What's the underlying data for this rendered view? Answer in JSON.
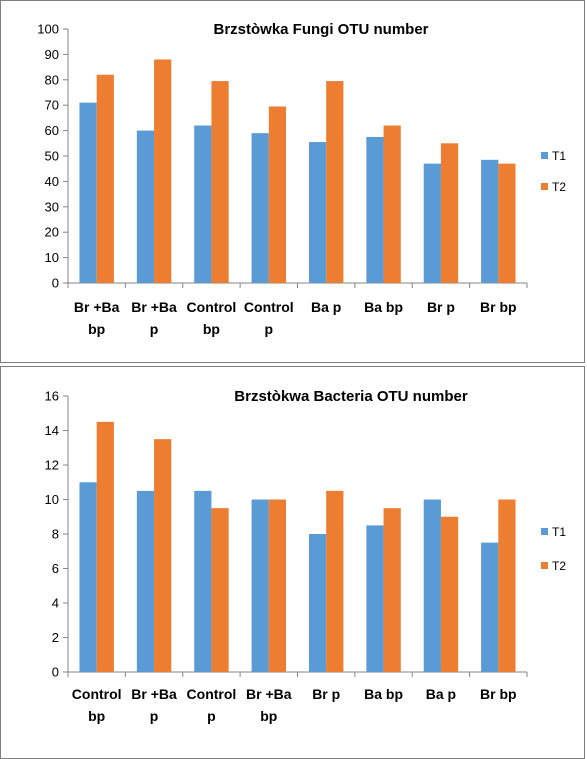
{
  "colors": {
    "T1": "#5b9bd5",
    "T2": "#ed7d31",
    "axis": "#868686"
  },
  "chart_data": [
    {
      "type": "bar",
      "title": "Brzstòwka Fungi OTU number",
      "categories": [
        [
          "Br +Ba",
          "bp"
        ],
        [
          "Br +Ba",
          "p"
        ],
        [
          "Control",
          "bp"
        ],
        [
          "Control",
          "p"
        ],
        [
          "Ba p"
        ],
        [
          "Ba bp"
        ],
        [
          "Br p"
        ],
        [
          "Br bp"
        ]
      ],
      "series": [
        {
          "name": "T1",
          "values": [
            71,
            60,
            62,
            59,
            55.5,
            57.5,
            47,
            48.5
          ]
        },
        {
          "name": "T2",
          "values": [
            82,
            88,
            79.5,
            69.5,
            79.5,
            62,
            55,
            47
          ]
        }
      ],
      "ylim": [
        0,
        100
      ],
      "yticks": [
        0,
        10,
        20,
        30,
        40,
        50,
        60,
        70,
        80,
        90,
        100
      ],
      "xlabel": "",
      "ylabel": "",
      "grid": false,
      "legend": "right"
    },
    {
      "type": "bar",
      "title": "Brzstòkwa Bacteria OTU number",
      "categories": [
        [
          "Control",
          "bp"
        ],
        [
          "Br +Ba",
          "p"
        ],
        [
          "Control",
          "p"
        ],
        [
          "Br +Ba",
          "bp"
        ],
        [
          "Br p"
        ],
        [
          "Ba bp"
        ],
        [
          "Ba p"
        ],
        [
          "Br bp"
        ]
      ],
      "series": [
        {
          "name": "T1",
          "values": [
            11,
            10.5,
            10.5,
            10,
            8,
            8.5,
            10,
            7.5
          ]
        },
        {
          "name": "T2",
          "values": [
            14.5,
            13.5,
            9.5,
            10,
            10.5,
            9.5,
            9,
            10
          ]
        }
      ],
      "ylim": [
        0,
        16
      ],
      "yticks": [
        0,
        2,
        4,
        6,
        8,
        10,
        12,
        14,
        16
      ],
      "xlabel": "",
      "ylabel": "",
      "grid": false,
      "legend": "right"
    }
  ]
}
